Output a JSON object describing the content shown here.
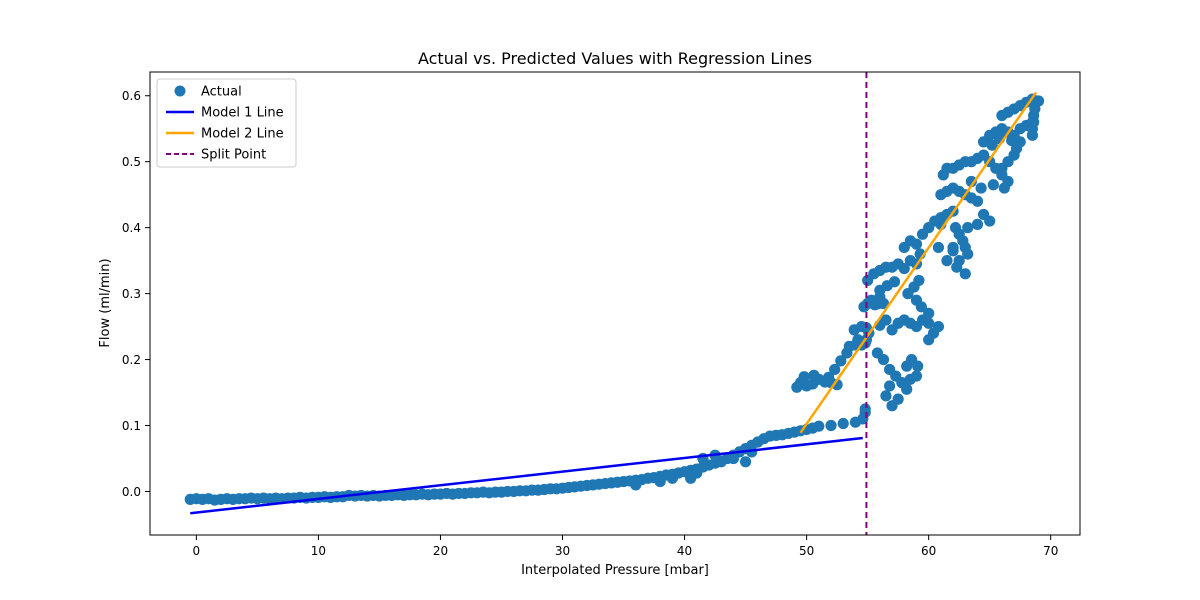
{
  "chart_data": {
    "type": "scatter",
    "title": "Actual vs. Predicted Values with Regression Lines",
    "xlabel": "Interpolated Pressure [mbar]",
    "ylabel": "Flow (ml/min)",
    "xlim": [
      -3.8,
      72.4
    ],
    "ylim": [
      -0.066,
      0.636
    ],
    "xticks": [
      0,
      10,
      20,
      30,
      40,
      50,
      60,
      70
    ],
    "yticks": [
      0.0,
      0.1,
      0.2,
      0.3,
      0.4,
      0.5,
      0.6
    ],
    "xtick_labels": [
      "0",
      "10",
      "20",
      "30",
      "40",
      "50",
      "60",
      "70"
    ],
    "ytick_labels": [
      "0.0",
      "0.1",
      "0.2",
      "0.3",
      "0.4",
      "0.5",
      "0.6"
    ],
    "legend_position": "top-left",
    "grid": false,
    "legend": [
      {
        "label": "Actual",
        "kind": "marker",
        "color": "#1f77b4"
      },
      {
        "label": "Model 1 Line",
        "kind": "line",
        "color": "#0000ee"
      },
      {
        "label": "Model 2 Line",
        "kind": "line",
        "color": "#ffa500"
      },
      {
        "label": "Split Point",
        "kind": "dashed",
        "color": "#800080"
      }
    ],
    "series": [
      {
        "name": "Actual",
        "type": "scatter",
        "color": "#1f77b4",
        "points": [
          [
            -0.5,
            -0.012
          ],
          [
            0,
            -0.011
          ],
          [
            0.5,
            -0.012
          ],
          [
            1,
            -0.011
          ],
          [
            1.5,
            -0.013
          ],
          [
            2,
            -0.012
          ],
          [
            2.5,
            -0.011
          ],
          [
            3,
            -0.012
          ],
          [
            3.5,
            -0.011
          ],
          [
            4,
            -0.011
          ],
          [
            4.5,
            -0.01
          ],
          [
            5,
            -0.011
          ],
          [
            5.5,
            -0.01
          ],
          [
            6,
            -0.011
          ],
          [
            6.5,
            -0.01
          ],
          [
            7,
            -0.011
          ],
          [
            7.5,
            -0.01
          ],
          [
            8,
            -0.01
          ],
          [
            8.5,
            -0.009
          ],
          [
            9,
            -0.01
          ],
          [
            9.5,
            -0.009
          ],
          [
            10,
            -0.009
          ],
          [
            10.5,
            -0.008
          ],
          [
            11,
            -0.009
          ],
          [
            11.5,
            -0.008
          ],
          [
            12,
            -0.008
          ],
          [
            12.5,
            -0.006
          ],
          [
            13,
            -0.007
          ],
          [
            13.5,
            -0.006
          ],
          [
            14,
            -0.007
          ],
          [
            14.5,
            -0.006
          ],
          [
            15,
            -0.007
          ],
          [
            15.5,
            -0.006
          ],
          [
            16,
            -0.006
          ],
          [
            16.5,
            -0.005
          ],
          [
            17,
            -0.006
          ],
          [
            17.5,
            -0.005
          ],
          [
            18,
            -0.005
          ],
          [
            18.5,
            -0.004
          ],
          [
            19,
            -0.005
          ],
          [
            19.5,
            -0.004
          ],
          [
            20,
            -0.004
          ],
          [
            20.5,
            -0.003
          ],
          [
            21,
            -0.004
          ],
          [
            21.5,
            -0.003
          ],
          [
            22,
            -0.003
          ],
          [
            22.5,
            -0.002
          ],
          [
            23,
            -0.002
          ],
          [
            23.5,
            -0.001
          ],
          [
            24,
            -0.002
          ],
          [
            24.5,
            -0.001
          ],
          [
            25,
            -0.001
          ],
          [
            25.5,
            0
          ],
          [
            26,
            0
          ],
          [
            26.5,
            0.001
          ],
          [
            27,
            0.001
          ],
          [
            27.5,
            0.002
          ],
          [
            28,
            0.002
          ],
          [
            28.5,
            0.003
          ],
          [
            29,
            0.004
          ],
          [
            29.5,
            0.004
          ],
          [
            30,
            0.005
          ],
          [
            30.5,
            0.006
          ],
          [
            31,
            0.007
          ],
          [
            31.5,
            0.008
          ],
          [
            32,
            0.009
          ],
          [
            32.5,
            0.01
          ],
          [
            33,
            0.011
          ],
          [
            33.5,
            0.012
          ],
          [
            34,
            0.013
          ],
          [
            34.5,
            0.014
          ],
          [
            35,
            0.015
          ],
          [
            35.5,
            0.016
          ],
          [
            36,
            0.017
          ],
          [
            36.5,
            0.018
          ],
          [
            37,
            0.02
          ],
          [
            37.5,
            0.021
          ],
          [
            38,
            0.023
          ],
          [
            38.5,
            0.025
          ],
          [
            39,
            0.026
          ],
          [
            39.5,
            0.028
          ],
          [
            40,
            0.03
          ],
          [
            40.5,
            0.032
          ],
          [
            41,
            0.034
          ],
          [
            41.5,
            0.037
          ],
          [
            42,
            0.04
          ],
          [
            42.5,
            0.043
          ],
          [
            43,
            0.046
          ],
          [
            43.5,
            0.05
          ],
          [
            44,
            0.055
          ],
          [
            44.5,
            0.06
          ],
          [
            45,
            0.065
          ],
          [
            45.5,
            0.07
          ],
          [
            46,
            0.075
          ],
          [
            46.5,
            0.08
          ],
          [
            47,
            0.084
          ],
          [
            47.5,
            0.085
          ],
          [
            48,
            0.086
          ],
          [
            48.5,
            0.088
          ],
          [
            49,
            0.09
          ],
          [
            49.5,
            0.092
          ],
          [
            50,
            0.094
          ],
          [
            50.5,
            0.096
          ],
          [
            51,
            0.099
          ],
          [
            52,
            0.1
          ],
          [
            53,
            0.103
          ],
          [
            54,
            0.105
          ],
          [
            54.6,
            0.11
          ],
          [
            54.8,
            0.12
          ],
          [
            54.8,
            0.125
          ],
          [
            41.5,
            0.05
          ],
          [
            42.5,
            0.055
          ],
          [
            43,
            0.045
          ],
          [
            44,
            0.05
          ],
          [
            45,
            0.045
          ],
          [
            45.5,
            0.06
          ],
          [
            40.5,
            0.02
          ],
          [
            41,
            0.028
          ],
          [
            39,
            0.02
          ],
          [
            38,
            0.015
          ],
          [
            36,
            0.01
          ],
          [
            49.2,
            0.158
          ],
          [
            49.5,
            0.165
          ],
          [
            50,
            0.16
          ],
          [
            50.5,
            0.163
          ],
          [
            51,
            0.17
          ],
          [
            51.5,
            0.166
          ],
          [
            52,
            0.165
          ],
          [
            52.5,
            0.162
          ],
          [
            49.8,
            0.174
          ],
          [
            50.6,
            0.176
          ],
          [
            51.8,
            0.173
          ],
          [
            52.3,
            0.185
          ],
          [
            52.8,
            0.198
          ],
          [
            53.3,
            0.21
          ],
          [
            53.5,
            0.22
          ],
          [
            54,
            0.222
          ],
          [
            54.5,
            0.222
          ],
          [
            54.8,
            0.225
          ],
          [
            54.9,
            0.23
          ],
          [
            53.9,
            0.245
          ],
          [
            54.5,
            0.25
          ],
          [
            54.9,
            0.248
          ],
          [
            54.7,
            0.28
          ],
          [
            55,
            0.285
          ],
          [
            55.3,
            0.29
          ],
          [
            55.6,
            0.283
          ],
          [
            55.9,
            0.285
          ],
          [
            56,
            0.295
          ],
          [
            56.3,
            0.285
          ],
          [
            54.2,
            0.23
          ],
          [
            55.1,
            0.24
          ],
          [
            56,
            0.252
          ],
          [
            56.5,
            0.26
          ],
          [
            57,
            0.245
          ],
          [
            57.5,
            0.255
          ],
          [
            58,
            0.26
          ],
          [
            58.5,
            0.255
          ],
          [
            59,
            0.25
          ],
          [
            59.5,
            0.26
          ],
          [
            60,
            0.255
          ],
          [
            55,
            0.32
          ],
          [
            55.5,
            0.33
          ],
          [
            56,
            0.335
          ],
          [
            56.5,
            0.34
          ],
          [
            57,
            0.34
          ],
          [
            57.5,
            0.345
          ],
          [
            58,
            0.338
          ],
          [
            58.5,
            0.35
          ],
          [
            59,
            0.345
          ],
          [
            56,
            0.305
          ],
          [
            56.6,
            0.312
          ],
          [
            57.2,
            0.318
          ],
          [
            55.8,
            0.21
          ],
          [
            56.3,
            0.2
          ],
          [
            56.8,
            0.185
          ],
          [
            57.3,
            0.175
          ],
          [
            57.8,
            0.165
          ],
          [
            58.5,
            0.17
          ],
          [
            59,
            0.175
          ],
          [
            56.5,
            0.145
          ],
          [
            57,
            0.13
          ],
          [
            57.5,
            0.14
          ],
          [
            58.2,
            0.155
          ],
          [
            56.8,
            0.16
          ],
          [
            58.2,
            0.19
          ],
          [
            58.6,
            0.2
          ],
          [
            59.1,
            0.19
          ],
          [
            60,
            0.23
          ],
          [
            60.4,
            0.24
          ],
          [
            60.8,
            0.25
          ],
          [
            60,
            0.27
          ],
          [
            59.4,
            0.28
          ],
          [
            59,
            0.29
          ],
          [
            58.3,
            0.3
          ],
          [
            58.8,
            0.31
          ],
          [
            59.2,
            0.32
          ],
          [
            58,
            0.37
          ],
          [
            58.5,
            0.38
          ],
          [
            59,
            0.375
          ],
          [
            59.5,
            0.39
          ],
          [
            60,
            0.4
          ],
          [
            60.5,
            0.41
          ],
          [
            61,
            0.405
          ],
          [
            59.3,
            0.36
          ],
          [
            60.8,
            0.37
          ],
          [
            61,
            0.415
          ],
          [
            61.5,
            0.42
          ],
          [
            62,
            0.425
          ],
          [
            62.2,
            0.4
          ],
          [
            62.5,
            0.39
          ],
          [
            62.8,
            0.38
          ],
          [
            63,
            0.37
          ],
          [
            63.2,
            0.36
          ],
          [
            61.5,
            0.35
          ],
          [
            62,
            0.365
          ],
          [
            61,
            0.45
          ],
          [
            61.5,
            0.455
          ],
          [
            62,
            0.46
          ],
          [
            62.5,
            0.455
          ],
          [
            63,
            0.45
          ],
          [
            63.5,
            0.445
          ],
          [
            64,
            0.44
          ],
          [
            64.5,
            0.42
          ],
          [
            65,
            0.41
          ],
          [
            63.2,
            0.4
          ],
          [
            64,
            0.405
          ],
          [
            61.2,
            0.48
          ],
          [
            61.5,
            0.49
          ],
          [
            62,
            0.49
          ],
          [
            62.5,
            0.495
          ],
          [
            63,
            0.5
          ],
          [
            63.5,
            0.5
          ],
          [
            64,
            0.505
          ],
          [
            64.5,
            0.51
          ],
          [
            65,
            0.5
          ],
          [
            65.5,
            0.49
          ],
          [
            66,
            0.48
          ],
          [
            66.5,
            0.47
          ],
          [
            63.5,
            0.47
          ],
          [
            64.3,
            0.46
          ],
          [
            65.3,
            0.465
          ],
          [
            66.2,
            0.46
          ],
          [
            64.5,
            0.53
          ],
          [
            65,
            0.54
          ],
          [
            65.5,
            0.545
          ],
          [
            66,
            0.55
          ],
          [
            66.5,
            0.545
          ],
          [
            67,
            0.54
          ],
          [
            67.5,
            0.55
          ],
          [
            68,
            0.555
          ],
          [
            68.5,
            0.56
          ],
          [
            65.2,
            0.525
          ],
          [
            65.8,
            0.535
          ],
          [
            66.8,
            0.532
          ],
          [
            66,
            0.57
          ],
          [
            66.5,
            0.575
          ],
          [
            67,
            0.58
          ],
          [
            67.5,
            0.585
          ],
          [
            68,
            0.59
          ],
          [
            68.5,
            0.595
          ],
          [
            69,
            0.592
          ],
          [
            66,
            0.49
          ],
          [
            66.5,
            0.5
          ],
          [
            67,
            0.51
          ],
          [
            67.2,
            0.52
          ],
          [
            67.5,
            0.53
          ],
          [
            68.5,
            0.54
          ],
          [
            68.5,
            0.55
          ],
          [
            68.6,
            0.56
          ],
          [
            68.6,
            0.57
          ],
          [
            68.7,
            0.58
          ],
          [
            62,
            0.37
          ],
          [
            62.5,
            0.35
          ],
          [
            63,
            0.33
          ],
          [
            62.3,
            0.34
          ]
        ]
      },
      {
        "name": "Model 1 Line",
        "type": "line",
        "color": "#0000ee",
        "points": [
          [
            -0.5,
            -0.033
          ],
          [
            54.6,
            0.081
          ]
        ]
      },
      {
        "name": "Model 2 Line",
        "type": "line",
        "color": "#ffa500",
        "points": [
          [
            49.5,
            0.089
          ],
          [
            68.8,
            0.605
          ]
        ]
      },
      {
        "name": "Split Point",
        "type": "vline",
        "color": "#800080",
        "x": 54.9
      }
    ]
  }
}
